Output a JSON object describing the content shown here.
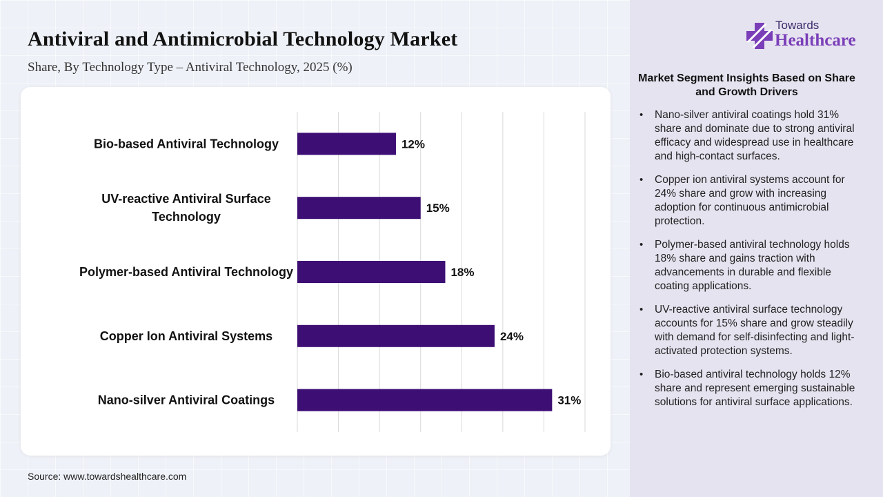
{
  "header": {
    "title": "Antiviral and Antimicrobial Technology Market",
    "subtitle": "Share, By Technology Type – Antiviral Technology, 2025 (%)"
  },
  "source": "Source: www.towardshealthcare.com",
  "logo": {
    "line1": "Towards",
    "line2": "Healthcare",
    "icon": "medical-cross-icon"
  },
  "insights": {
    "heading": "Market Segment Insights Based on Share and Growth Drivers",
    "items": [
      "Nano-silver antiviral coatings hold 31% share and dominate due to strong antiviral efficacy and widespread use in healthcare and high-contact surfaces.",
      "Copper ion antiviral systems account for 24% share and grow with increasing adoption for continuous antimicrobial protection.",
      "Polymer-based antiviral technology holds 18% share and gains traction with advancements in durable and flexible coating applications.",
      "UV-reactive antiviral surface technology accounts for 15% share and grow steadily with demand for self-disinfecting and light-activated protection systems.",
      "Bio-based antiviral technology holds 12% share and represent emerging sustainable solutions for antiviral surface applications."
    ]
  },
  "colors": {
    "bar": "#3d0f75",
    "grid": "#d9d9d9"
  },
  "chart_data": {
    "type": "bar",
    "orientation": "horizontal",
    "categories": [
      "Bio-based Antiviral Technology",
      "UV-reactive Antiviral Surface Technology",
      "Polymer-based Antiviral Technology",
      "Copper Ion Antiviral Systems",
      "Nano-silver Antiviral Coatings"
    ],
    "category_lines": [
      [
        "Bio-based Antiviral Technology"
      ],
      [
        "UV-reactive Antiviral Surface",
        "Technology"
      ],
      [
        "Polymer-based Antiviral Technology"
      ],
      [
        "Copper Ion Antiviral Systems"
      ],
      [
        "Nano-silver Antiviral Coatings"
      ]
    ],
    "values": [
      12,
      15,
      18,
      24,
      31
    ],
    "value_labels": [
      "12%",
      "15%",
      "18%",
      "24%",
      "31%"
    ],
    "xlim": [
      0,
      35
    ],
    "grid": true,
    "legend": "none"
  }
}
